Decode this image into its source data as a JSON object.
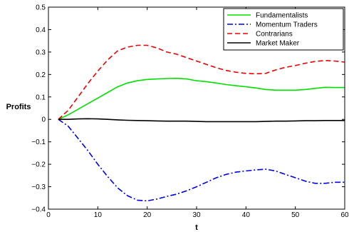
{
  "chart_data": {
    "type": "line",
    "xlabel": "t",
    "ylabel": "Profits",
    "xlim": [
      0,
      60
    ],
    "ylim": [
      -0.4,
      0.5
    ],
    "xticks": [
      0,
      10,
      20,
      30,
      40,
      50,
      60
    ],
    "yticks": [
      {
        "value": -0.4,
        "label": "−0.4"
      },
      {
        "value": -0.3,
        "label": "−0.3"
      },
      {
        "value": -0.2,
        "label": "−0.2"
      },
      {
        "value": -0.1,
        "label": "−0.1"
      },
      {
        "value": 0,
        "label": "0"
      },
      {
        "value": 0.1,
        "label": "0.1"
      },
      {
        "value": 0.2,
        "label": "0.2"
      },
      {
        "value": 0.3,
        "label": "0.3"
      },
      {
        "value": 0.4,
        "label": "0.4"
      },
      {
        "value": 0.5,
        "label": "0.5"
      }
    ],
    "grid": false,
    "legend_position": "top-right",
    "series": [
      {
        "name": "Fundamentalists",
        "color": "#00e000",
        "dash": "solid",
        "x": [
          2,
          4,
          6,
          8,
          10,
          12,
          14,
          16,
          18,
          20,
          22,
          24,
          26,
          28,
          30,
          32,
          34,
          36,
          38,
          40,
          42,
          44,
          46,
          48,
          50,
          52,
          54,
          56,
          58,
          60
        ],
        "y": [
          0.0,
          0.02,
          0.045,
          0.07,
          0.095,
          0.12,
          0.145,
          0.162,
          0.172,
          0.178,
          0.18,
          0.182,
          0.183,
          0.18,
          0.172,
          0.168,
          0.162,
          0.155,
          0.15,
          0.145,
          0.14,
          0.133,
          0.13,
          0.13,
          0.13,
          0.133,
          0.138,
          0.143,
          0.142,
          0.142
        ]
      },
      {
        "name": "Momentum Traders",
        "color": "#0000ee",
        "dash": "dashdot",
        "x": [
          2,
          4,
          6,
          8,
          10,
          12,
          14,
          16,
          18,
          20,
          22,
          24,
          26,
          28,
          30,
          32,
          34,
          36,
          38,
          40,
          42,
          44,
          46,
          48,
          50,
          52,
          54,
          56,
          58,
          60
        ],
        "y": [
          0.0,
          -0.03,
          -0.085,
          -0.14,
          -0.2,
          -0.255,
          -0.305,
          -0.34,
          -0.36,
          -0.363,
          -0.355,
          -0.343,
          -0.333,
          -0.318,
          -0.3,
          -0.28,
          -0.26,
          -0.245,
          -0.235,
          -0.23,
          -0.225,
          -0.222,
          -0.23,
          -0.245,
          -0.26,
          -0.275,
          -0.285,
          -0.285,
          -0.28,
          -0.28
        ]
      },
      {
        "name": "Contrarians",
        "color": "#ee0000",
        "dash": "dashed",
        "x": [
          2,
          4,
          6,
          8,
          10,
          12,
          14,
          16,
          18,
          20,
          22,
          24,
          26,
          28,
          30,
          32,
          34,
          36,
          38,
          40,
          42,
          44,
          46,
          48,
          50,
          52,
          54,
          56,
          58,
          60
        ],
        "y": [
          0.0,
          0.04,
          0.1,
          0.16,
          0.215,
          0.265,
          0.305,
          0.322,
          0.33,
          0.33,
          0.318,
          0.3,
          0.29,
          0.275,
          0.26,
          0.245,
          0.23,
          0.218,
          0.21,
          0.205,
          0.203,
          0.205,
          0.22,
          0.232,
          0.24,
          0.25,
          0.258,
          0.262,
          0.26,
          0.255
        ]
      },
      {
        "name": "Market Maker",
        "color": "#000000",
        "dash": "solid",
        "x": [
          2,
          4,
          6,
          8,
          10,
          12,
          14,
          16,
          18,
          20,
          22,
          24,
          26,
          28,
          30,
          32,
          34,
          36,
          38,
          40,
          42,
          44,
          46,
          48,
          50,
          52,
          54,
          56,
          58,
          60
        ],
        "y": [
          0.0,
          0.0,
          0.002,
          0.003,
          0.002,
          0.0,
          -0.002,
          -0.004,
          -0.005,
          -0.006,
          -0.007,
          -0.008,
          -0.008,
          -0.008,
          -0.009,
          -0.01,
          -0.01,
          -0.01,
          -0.01,
          -0.01,
          -0.01,
          -0.009,
          -0.008,
          -0.008,
          -0.007,
          -0.006,
          -0.006,
          -0.005,
          -0.005,
          -0.005
        ]
      }
    ]
  }
}
